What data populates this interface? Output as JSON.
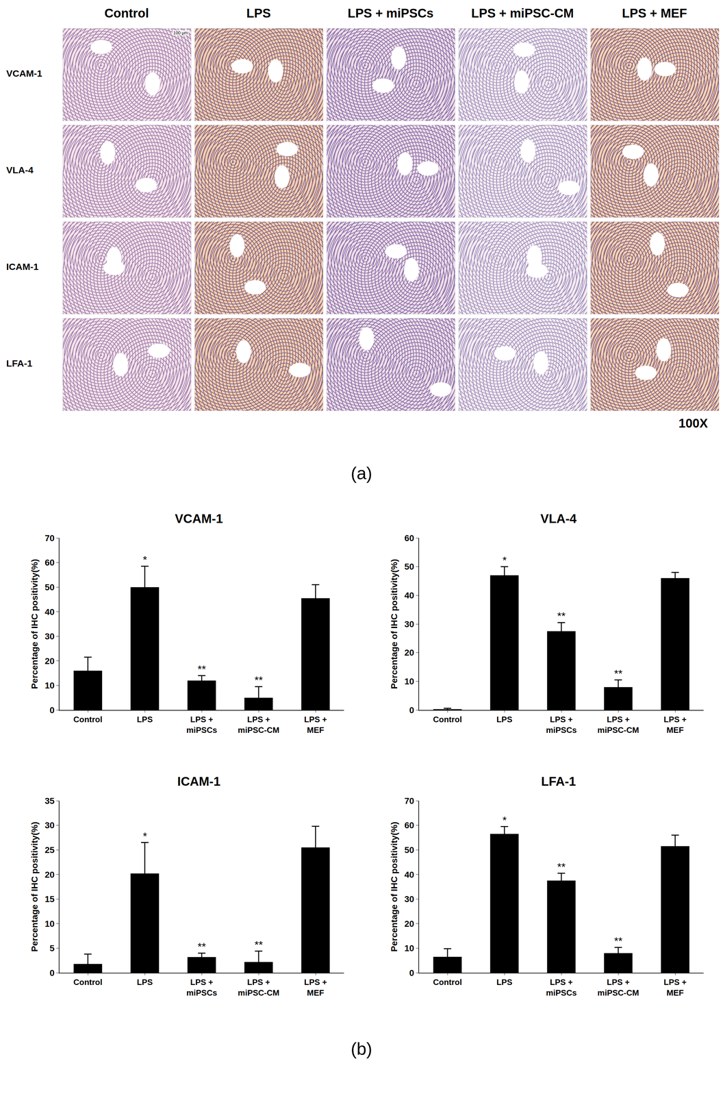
{
  "panel_a": {
    "label": "(a)",
    "columns": [
      "Control",
      "LPS",
      "LPS + miPSCs",
      "LPS + miPSC-CM",
      "LPS + MEF"
    ],
    "rows": [
      "VCAM-1",
      "VLA-4",
      "ICAM-1",
      "LFA-1"
    ],
    "magnification": "100X",
    "scale_bar": "100 μm"
  },
  "panel_b": {
    "label": "(b)"
  },
  "chart_data": [
    {
      "type": "bar",
      "title": "VCAM-1",
      "y_label": "Percentage of IHC positivity(%)",
      "categories": [
        "Control",
        "LPS",
        "LPS + miPSCs",
        "LPS + miPSC-CM",
        "LPS + MEF"
      ],
      "values": [
        16,
        50,
        12,
        5,
        45.5
      ],
      "errors": [
        5.5,
        8.5,
        2,
        4.5,
        5.5
      ],
      "significance": [
        null,
        "*",
        "**",
        "**",
        null
      ],
      "color": "#000000",
      "ylim": [
        0,
        70
      ],
      "yticks": [
        0,
        10,
        20,
        30,
        40,
        50,
        60,
        70
      ],
      "grid": false
    },
    {
      "type": "bar",
      "title": "VLA-4",
      "y_label": "Percentage of IHC positivity(%)",
      "categories": [
        "Control",
        "LPS",
        "LPS + miPSCs",
        "LPS + miPSC-CM",
        "LPS + MEF"
      ],
      "values": [
        0.3,
        47,
        27.5,
        8,
        46
      ],
      "errors": [
        0.3,
        3,
        3,
        2.5,
        2
      ],
      "significance": [
        null,
        "*",
        "**",
        "**",
        null
      ],
      "color": "#000000",
      "ylim": [
        0,
        60
      ],
      "yticks": [
        0,
        10,
        20,
        30,
        40,
        50,
        60
      ],
      "grid": false
    },
    {
      "type": "bar",
      "title": "ICAM-1",
      "y_label": "Percentage of IHC positivity(%)",
      "categories": [
        "Control",
        "LPS",
        "LPS + miPSCs",
        "LPS + miPSC-CM",
        "LPS + MEF"
      ],
      "values": [
        1.8,
        20.2,
        3.2,
        2.2,
        25.5
      ],
      "errors": [
        2,
        6.3,
        0.8,
        2.2,
        4.3
      ],
      "significance": [
        null,
        "*",
        "**",
        "**",
        null
      ],
      "color": "#000000",
      "ylim": [
        0,
        35
      ],
      "yticks": [
        0,
        5,
        10,
        15,
        20,
        25,
        30,
        35
      ],
      "grid": false
    },
    {
      "type": "bar",
      "title": "LFA-1",
      "y_label": "Percentage of IHC positivity(%)",
      "categories": [
        "Control",
        "LPS",
        "LPS + miPSCs",
        "LPS + miPSC-CM",
        "LPS + MEF"
      ],
      "values": [
        6.5,
        56.5,
        37.5,
        8,
        51.5
      ],
      "errors": [
        3.3,
        3,
        3,
        2.3,
        4.5
      ],
      "significance": [
        null,
        "*",
        "**",
        "**",
        null
      ],
      "color": "#000000",
      "ylim": [
        0,
        70
      ],
      "yticks": [
        0,
        10,
        20,
        30,
        40,
        50,
        60,
        70
      ],
      "grid": false
    }
  ]
}
